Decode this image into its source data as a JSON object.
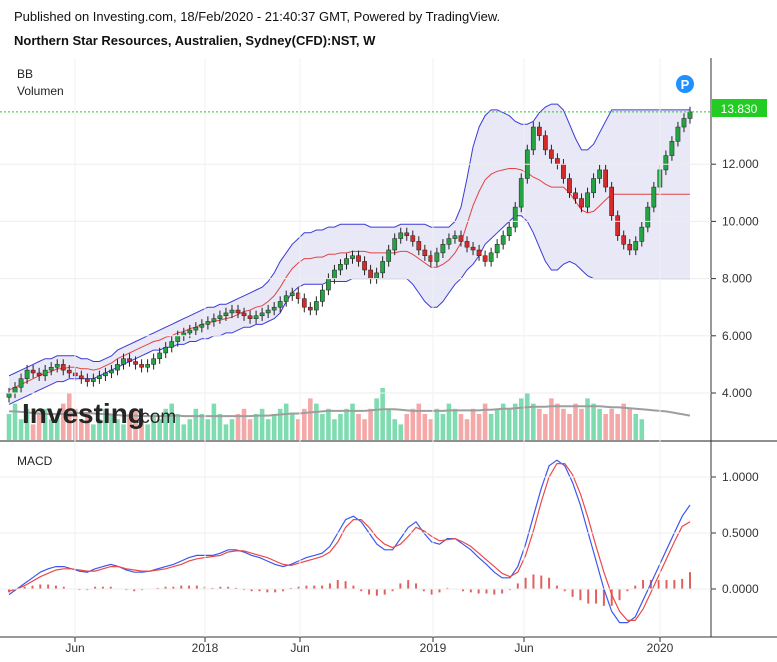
{
  "header": {
    "published": "Published on Investing.com, 18/Feb/2020 - 21:40:37 GMT, Powered by TradingView.",
    "symbol": "Northern Star Resources, Australien, Sydney(CFD):NST, W"
  },
  "watermark": {
    "brand": "Investing",
    "suffix": ".com"
  },
  "indicators": {
    "bb": "BB",
    "volume": "Volumen",
    "macd": "MACD"
  },
  "marker": "P",
  "colors": {
    "up": "#26a144",
    "down": "#d32b2b",
    "bb_band": "#3b3bd6",
    "bb_fill": "#e8e8f7",
    "bb_mid": "#e04545",
    "vol_up": "#7fdcb0",
    "vol_down": "#f4a8a8",
    "vol_ma": "#9e9e9e",
    "macd": "#3b57f0",
    "signal": "#ea4a4a",
    "hist": "#e06060",
    "last_price": "#22cc22"
  },
  "chart_data": [
    {
      "type": "candlestick",
      "title": "Northern Star Resources, Australien, Sydney(CFD):NST, W",
      "x_tick_labels": [
        "Jun",
        "2018",
        "Jun",
        "2019",
        "Jun",
        "2020"
      ],
      "y_tick_labels": [
        "4.000",
        "6.000",
        "8.000",
        "10.000",
        "12.000"
      ],
      "ylim": [
        2.5,
        13.9
      ],
      "last_price": 13.83,
      "last_price_label": "13.830",
      "close": [
        4.0,
        4.2,
        4.5,
        4.8,
        4.7,
        4.6,
        4.8,
        4.9,
        5.0,
        4.8,
        4.7,
        4.6,
        4.5,
        4.4,
        4.5,
        4.6,
        4.7,
        4.8,
        5.0,
        5.2,
        5.1,
        5.0,
        4.9,
        5.0,
        5.2,
        5.4,
        5.6,
        5.8,
        6.0,
        6.1,
        6.2,
        6.3,
        6.4,
        6.5,
        6.6,
        6.7,
        6.8,
        6.9,
        6.8,
        6.7,
        6.6,
        6.7,
        6.8,
        6.9,
        7.0,
        7.2,
        7.4,
        7.5,
        7.3,
        7.0,
        6.9,
        7.2,
        7.6,
        8.0,
        8.3,
        8.5,
        8.7,
        8.8,
        8.6,
        8.3,
        8.0,
        8.2,
        8.6,
        9.0,
        9.4,
        9.6,
        9.5,
        9.3,
        9.0,
        8.8,
        8.6,
        8.9,
        9.2,
        9.4,
        9.5,
        9.3,
        9.1,
        9.0,
        8.8,
        8.6,
        8.9,
        9.2,
        9.5,
        9.8,
        10.5,
        11.5,
        12.5,
        13.3,
        13.0,
        12.5,
        12.2,
        12.0,
        11.5,
        11.0,
        10.8,
        10.5,
        11.0,
        11.5,
        11.8,
        11.2,
        10.2,
        9.5,
        9.2,
        9.0,
        9.3,
        9.8,
        10.5,
        11.2,
        11.8,
        12.3,
        12.8,
        13.3,
        13.6,
        13.83
      ],
      "bb_upper": [
        4.6,
        4.7,
        4.8,
        4.9,
        5.0,
        5.1,
        5.2,
        5.2,
        5.3,
        5.3,
        5.3,
        5.3,
        5.2,
        5.2,
        5.1,
        5.1,
        5.2,
        5.3,
        5.5,
        5.6,
        5.7,
        5.8,
        5.9,
        6.0,
        6.1,
        6.2,
        6.3,
        6.4,
        6.5,
        6.6,
        6.7,
        6.8,
        6.9,
        7.0,
        7.0,
        7.1,
        7.1,
        7.2,
        7.3,
        7.4,
        7.5,
        7.6,
        7.7,
        7.9,
        8.2,
        8.6,
        8.9,
        9.2,
        9.4,
        9.6,
        9.6,
        9.7,
        9.7,
        9.8,
        9.8,
        9.9,
        9.9,
        9.9,
        9.9,
        9.9,
        9.8,
        9.8,
        9.8,
        9.8,
        9.8,
        9.9,
        9.9,
        9.9,
        9.9,
        9.9,
        9.8,
        9.8,
        9.8,
        9.8,
        10.0,
        10.5,
        11.5,
        12.6,
        13.3,
        13.7,
        13.9,
        13.9,
        13.8,
        13.7,
        13.5,
        13.4,
        13.4,
        13.5,
        13.8,
        14.0,
        14.1,
        14.1,
        13.9,
        13.4,
        12.9,
        12.5,
        12.5,
        12.7,
        13.1,
        13.5,
        13.9,
        13.9,
        13.9,
        13.9,
        13.9,
        13.9,
        13.9,
        13.9,
        13.9,
        13.9,
        13.9,
        13.9,
        13.9,
        13.9
      ],
      "bb_lower": [
        3.6,
        3.7,
        3.8,
        3.9,
        4.0,
        4.1,
        4.2,
        4.3,
        4.4,
        4.4,
        4.5,
        4.5,
        4.5,
        4.5,
        4.5,
        4.6,
        4.7,
        4.8,
        4.9,
        5.0,
        5.1,
        5.2,
        5.3,
        5.4,
        5.5,
        5.5,
        5.6,
        5.6,
        5.7,
        5.7,
        5.8,
        5.8,
        5.9,
        5.9,
        6.0,
        6.0,
        6.1,
        6.1,
        6.2,
        6.3,
        6.3,
        6.4,
        6.4,
        6.5,
        6.6,
        6.8,
        7.2,
        7.5,
        7.7,
        7.8,
        7.8,
        7.8,
        7.8,
        7.9,
        7.9,
        7.9,
        7.9,
        8.0,
        8.0,
        8.0,
        8.0,
        8.0,
        8.0,
        8.0,
        8.0,
        8.0,
        8.0,
        7.8,
        7.5,
        7.2,
        7.0,
        7.0,
        7.2,
        7.5,
        7.8,
        8.0,
        8.3,
        8.5,
        8.8,
        9.2,
        9.4,
        9.6,
        9.8,
        10.0,
        10.2,
        10.2,
        10.0,
        9.6,
        9.1,
        8.6,
        8.3,
        8.3,
        8.5,
        8.6,
        8.5,
        8.3,
        8.1,
        8.0,
        8.0,
        8.0,
        8.0,
        8.0,
        8.0,
        8.0,
        8.0,
        8.0,
        8.0,
        8.0,
        8.0,
        8.0,
        8.0,
        8.0,
        8.0,
        8.0
      ],
      "volume_range_note": "",
      "volume": [
        0.5,
        0.7,
        0.4,
        0.6,
        0.3,
        0.5,
        0.6,
        0.4,
        0.5,
        0.7,
        0.9,
        0.6,
        0.4,
        0.5,
        0.3,
        0.4,
        0.6,
        0.5,
        0.4,
        0.3,
        0.5,
        0.6,
        0.4,
        0.3,
        0.5,
        0.4,
        0.6,
        0.7,
        0.5,
        0.3,
        0.4,
        0.6,
        0.5,
        0.4,
        0.7,
        0.5,
        0.3,
        0.4,
        0.5,
        0.6,
        0.4,
        0.5,
        0.6,
        0.4,
        0.5,
        0.6,
        0.7,
        0.5,
        0.4,
        0.6,
        0.8,
        0.7,
        0.5,
        0.6,
        0.4,
        0.5,
        0.6,
        0.7,
        0.5,
        0.4,
        0.6,
        0.8,
        1.0,
        0.6,
        0.4,
        0.3,
        0.5,
        0.6,
        0.7,
        0.5,
        0.4,
        0.6,
        0.5,
        0.7,
        0.6,
        0.5,
        0.4,
        0.6,
        0.5,
        0.7,
        0.5,
        0.6,
        0.7,
        0.6,
        0.7,
        0.8,
        0.9,
        0.7,
        0.6,
        0.5,
        0.8,
        0.7,
        0.6,
        0.5,
        0.7,
        0.6,
        0.8,
        0.7,
        0.6,
        0.5,
        0.6,
        0.5,
        0.7,
        0.6,
        0.5,
        0.4,
        0.5,
        0.6,
        0.4,
        0.5,
        0.6,
        0.5,
        0.4,
        0.3
      ],
      "volume_ma": [
        0.55,
        0.55,
        0.54,
        0.53,
        0.52,
        0.51,
        0.5,
        0.5,
        0.5,
        0.5,
        0.51,
        0.52,
        0.52,
        0.52,
        0.51,
        0.5,
        0.5,
        0.49,
        0.48,
        0.47,
        0.47,
        0.47,
        0.46,
        0.46,
        0.46,
        0.46,
        0.46,
        0.47,
        0.47,
        0.46,
        0.46,
        0.46,
        0.46,
        0.46,
        0.46,
        0.46,
        0.46,
        0.46,
        0.46,
        0.46,
        0.46,
        0.47,
        0.47,
        0.47,
        0.48,
        0.49,
        0.5,
        0.51,
        0.51,
        0.52,
        0.53,
        0.54,
        0.55,
        0.56,
        0.56,
        0.56,
        0.56,
        0.56,
        0.56,
        0.56,
        0.57,
        0.58,
        0.59,
        0.59,
        0.59,
        0.58,
        0.57,
        0.56,
        0.56,
        0.56,
        0.56,
        0.56,
        0.56,
        0.57,
        0.57,
        0.57,
        0.57,
        0.57,
        0.57,
        0.58,
        0.58,
        0.59,
        0.6,
        0.6,
        0.61,
        0.62,
        0.63,
        0.64,
        0.64,
        0.64,
        0.65,
        0.65,
        0.65,
        0.65,
        0.65,
        0.65,
        0.65,
        0.65,
        0.65,
        0.64,
        0.63,
        0.63,
        0.62,
        0.61,
        0.6,
        0.59,
        0.58,
        0.57,
        0.56,
        0.55,
        0.53,
        0.51,
        0.49,
        0.47
      ]
    },
    {
      "type": "line",
      "title": "MACD",
      "y_tick_labels": [
        "0.0000",
        "0.5000",
        "1.0000"
      ],
      "ylim": [
        -0.35,
        1.2
      ],
      "macd": [
        -0.05,
        0.0,
        0.05,
        0.1,
        0.15,
        0.18,
        0.2,
        0.2,
        0.18,
        0.16,
        0.15,
        0.18,
        0.2,
        0.22,
        0.2,
        0.17,
        0.15,
        0.15,
        0.16,
        0.18,
        0.2,
        0.22,
        0.25,
        0.28,
        0.3,
        0.3,
        0.3,
        0.32,
        0.35,
        0.35,
        0.33,
        0.3,
        0.28,
        0.25,
        0.22,
        0.2,
        0.22,
        0.25,
        0.28,
        0.3,
        0.32,
        0.38,
        0.5,
        0.62,
        0.65,
        0.6,
        0.5,
        0.4,
        0.35,
        0.35,
        0.45,
        0.55,
        0.6,
        0.5,
        0.42,
        0.4,
        0.45,
        0.45,
        0.4,
        0.35,
        0.28,
        0.22,
        0.15,
        0.1,
        0.1,
        0.2,
        0.4,
        0.65,
        0.9,
        1.1,
        1.15,
        1.1,
        0.95,
        0.75,
        0.5,
        0.25,
        0.0,
        -0.2,
        -0.3,
        -0.3,
        -0.25,
        -0.1,
        0.05,
        0.2,
        0.35,
        0.5,
        0.65,
        0.75
      ],
      "signal": [
        -0.02,
        0.0,
        0.03,
        0.07,
        0.11,
        0.14,
        0.17,
        0.18,
        0.18,
        0.17,
        0.16,
        0.16,
        0.18,
        0.2,
        0.2,
        0.18,
        0.17,
        0.16,
        0.16,
        0.17,
        0.18,
        0.2,
        0.22,
        0.25,
        0.27,
        0.28,
        0.29,
        0.3,
        0.33,
        0.34,
        0.34,
        0.32,
        0.3,
        0.28,
        0.25,
        0.22,
        0.21,
        0.23,
        0.25,
        0.27,
        0.29,
        0.33,
        0.42,
        0.55,
        0.62,
        0.62,
        0.55,
        0.46,
        0.4,
        0.37,
        0.4,
        0.47,
        0.55,
        0.52,
        0.47,
        0.43,
        0.44,
        0.45,
        0.42,
        0.38,
        0.32,
        0.26,
        0.2,
        0.14,
        0.11,
        0.15,
        0.3,
        0.52,
        0.78,
        1.0,
        1.12,
        1.12,
        1.02,
        0.85,
        0.63,
        0.38,
        0.15,
        -0.05,
        -0.2,
        -0.28,
        -0.28,
        -0.18,
        -0.03,
        0.12,
        0.27,
        0.42,
        0.56,
        0.6
      ],
      "histogram": [
        -0.03,
        0.0,
        0.02,
        0.03,
        0.04,
        0.04,
        0.03,
        0.02,
        0.0,
        -0.01,
        -0.01,
        0.02,
        0.02,
        0.02,
        0.0,
        -0.01,
        -0.02,
        -0.01,
        0.0,
        0.01,
        0.02,
        0.02,
        0.03,
        0.03,
        0.03,
        0.02,
        0.01,
        0.02,
        0.02,
        0.01,
        -0.01,
        -0.02,
        -0.02,
        -0.03,
        -0.03,
        -0.02,
        0.01,
        0.02,
        0.03,
        0.03,
        0.03,
        0.05,
        0.08,
        0.07,
        0.03,
        -0.02,
        -0.05,
        -0.06,
        -0.05,
        -0.02,
        0.05,
        0.08,
        0.05,
        -0.02,
        -0.05,
        -0.03,
        0.01,
        0.0,
        -0.02,
        -0.03,
        -0.04,
        -0.04,
        -0.05,
        -0.04,
        -0.01,
        0.05,
        0.1,
        0.13,
        0.12,
        0.1,
        0.03,
        -0.02,
        -0.07,
        -0.1,
        -0.13,
        -0.13,
        -0.15,
        -0.15,
        -0.1,
        -0.02,
        0.03,
        0.08,
        0.08,
        0.08,
        0.08,
        0.08,
        0.09,
        0.15
      ]
    }
  ]
}
